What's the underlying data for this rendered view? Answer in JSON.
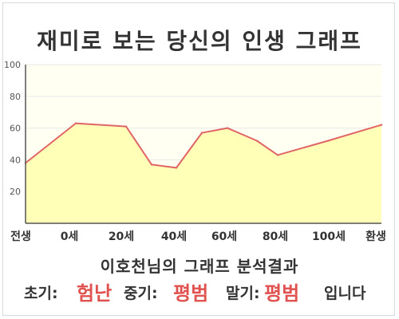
{
  "title": "재미로 보는 당신의 인생 그래프",
  "chart_data": {
    "type": "area",
    "x_labels": [
      "전생",
      "0세",
      "20세",
      "40세",
      "60세",
      "80세",
      "100세",
      "환생"
    ],
    "y_ticks": [
      20,
      40,
      60,
      80,
      100
    ],
    "ylim": [
      0,
      100
    ],
    "points": [
      {
        "x": "전생",
        "y": 38
      },
      {
        "x": "0세",
        "y": 63
      },
      {
        "x": "20세",
        "y": 61
      },
      {
        "x": "40세 이전",
        "y": 37
      },
      {
        "x": "40세",
        "y": 35
      },
      {
        "x": "40세 이후",
        "y": 57
      },
      {
        "x": "60세",
        "y": 60
      },
      {
        "x": "60세 이후",
        "y": 52
      },
      {
        "x": "80세",
        "y": 43
      },
      {
        "x": "100세",
        "y": 52
      },
      {
        "x": "환생",
        "y": 62
      }
    ],
    "grid": true,
    "colors": {
      "line": "#e06666",
      "fill": "#ffffb8",
      "plot_bg": "#fffff2",
      "grid": "#e8e8e8",
      "value_text": "#e0524f"
    }
  },
  "result": {
    "heading": "이호천님의 그래프 분석결과",
    "early_label": "초기:",
    "early_value": "험난",
    "mid_label": "중기:",
    "mid_value": "평범",
    "late_label": "말기:",
    "late_value": "평범",
    "suffix": "입니다"
  }
}
